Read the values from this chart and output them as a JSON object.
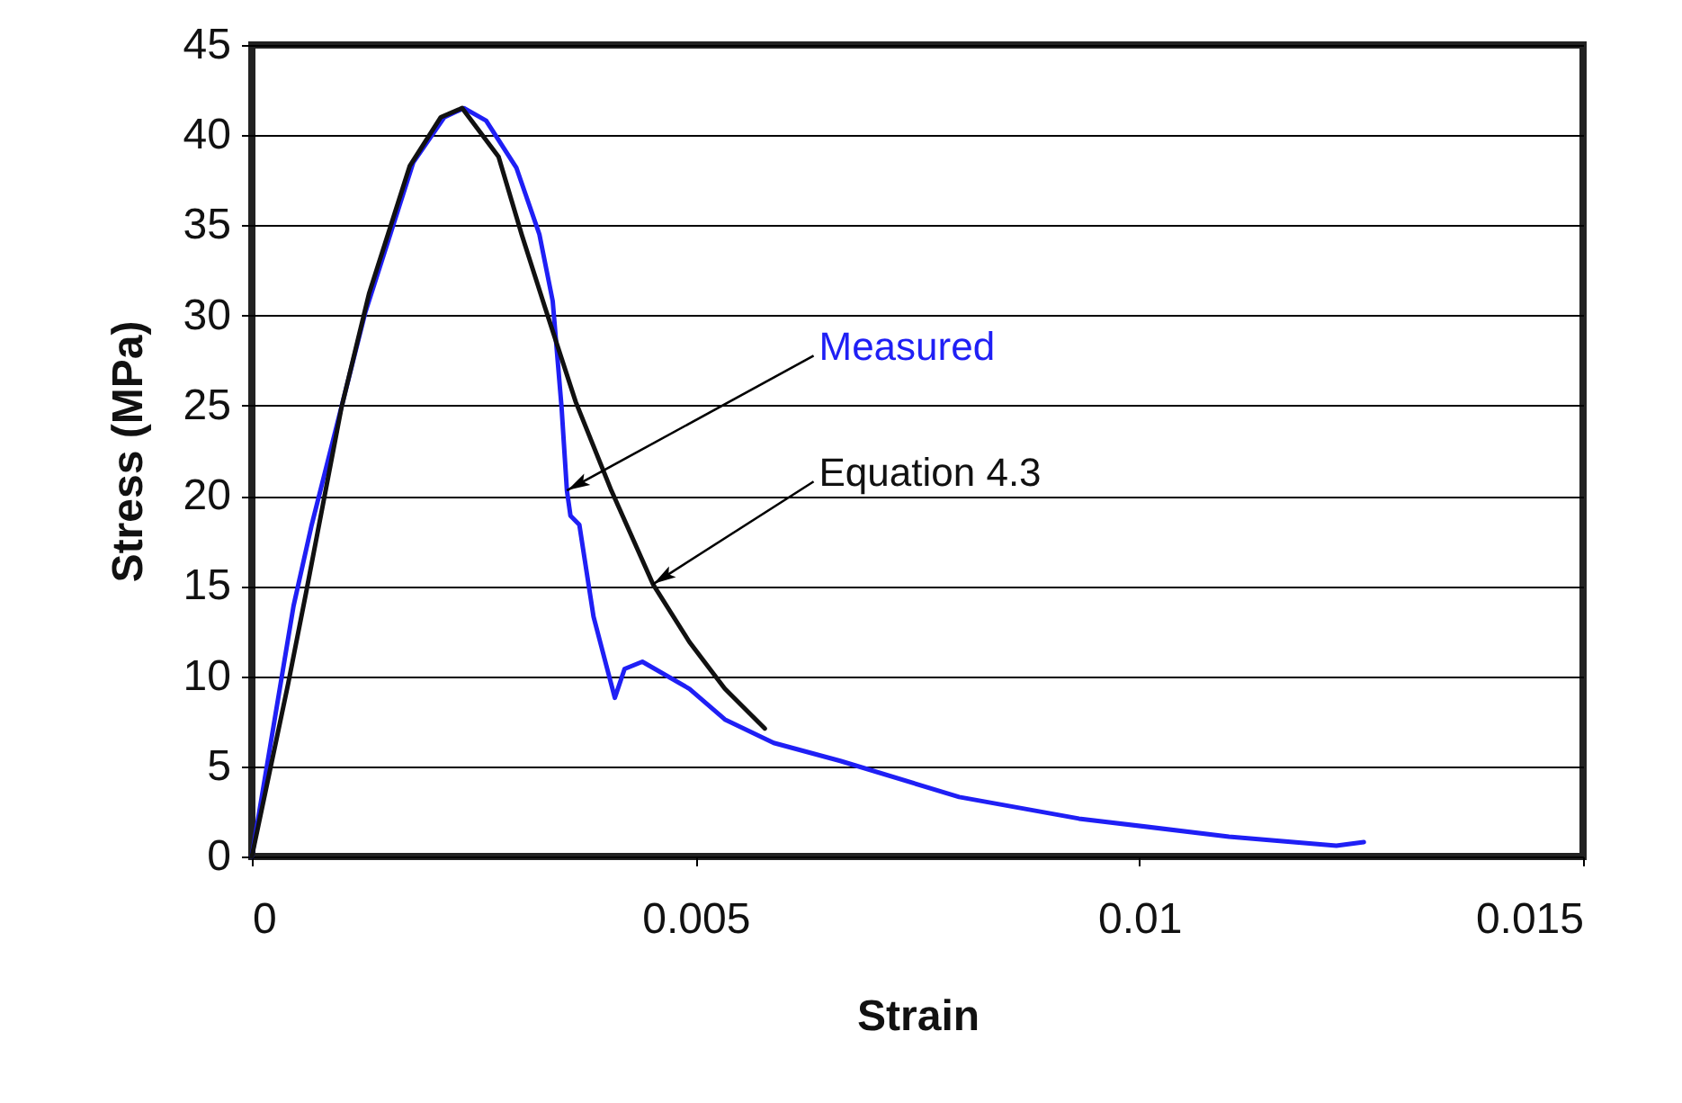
{
  "chart_data": {
    "type": "line",
    "xlabel": "Strain",
    "ylabel": "Stress (MPa)",
    "xlim": [
      0,
      0.015
    ],
    "xticks": [
      0,
      0.005,
      0.01,
      0.015
    ],
    "ylim": [
      0,
      45
    ],
    "yticks": [
      0,
      5,
      10,
      15,
      20,
      25,
      30,
      35,
      40,
      45
    ],
    "grid": "y",
    "line_style": "solid",
    "series": [
      {
        "name": "Measured",
        "color": "#1f1ff5",
        "x": [
          0,
          0.00047,
          0.00067,
          0.00128,
          0.00182,
          0.00217,
          0.00239,
          0.00264,
          0.00298,
          0.00324,
          0.00339,
          0.00349,
          0.00355,
          0.00359,
          0.00369,
          0.00385,
          0.00401,
          0.00409,
          0.0042,
          0.0044,
          0.00493,
          0.00533,
          0.00588,
          0.00663,
          0.00797,
          0.00932,
          0.01101,
          0.01222,
          0.01253
        ],
        "values": [
          0,
          13.9,
          18.3,
          30.2,
          38.5,
          41,
          41.5,
          40.8,
          38.2,
          34.5,
          30.8,
          24.9,
          20.3,
          18.9,
          18.4,
          13.3,
          10.3,
          8.8,
          10.4,
          10.8,
          9.3,
          7.6,
          6.3,
          5.3,
          3.3,
          2.1,
          1.1,
          0.6,
          0.8
        ]
      },
      {
        "name": "Equation 4.3",
        "color": "#111111",
        "x": [
          0,
          0.00041,
          0.00061,
          0.00101,
          0.00132,
          0.00178,
          0.00213,
          0.00237,
          0.00278,
          0.00304,
          0.0033,
          0.00365,
          0.00405,
          0.00452,
          0.00493,
          0.00533,
          0.00578
        ],
        "values": [
          0,
          9.6,
          14.6,
          24.9,
          31.2,
          38.3,
          41,
          41.5,
          38.8,
          34.5,
          30.5,
          25.2,
          20.3,
          15.1,
          11.9,
          9.3,
          7.1
        ]
      }
    ]
  }
}
